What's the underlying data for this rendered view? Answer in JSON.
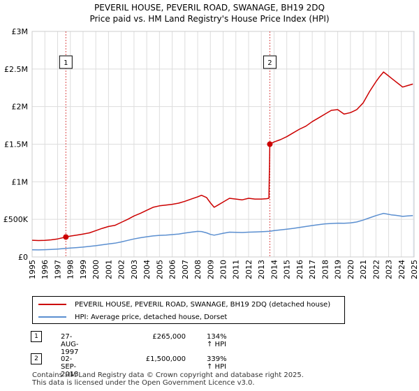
{
  "title_line1": "PEVERIL HOUSE, PEVERIL ROAD, SWANAGE, BH19 2DQ",
  "title_line2": "Price paid vs. HM Land Registry's House Price Index (HPI)",
  "colors": {
    "property": "#cc0000",
    "hpi": "#5b8fd0",
    "grid": "#dddddd",
    "shade": "#e8eef8",
    "vline": "#cc0000"
  },
  "chart_data": {
    "type": "line",
    "x_range": [
      1995,
      2025
    ],
    "ylim": [
      0,
      3000000
    ],
    "y_ticks": [
      {
        "value": 0,
        "label": "£0"
      },
      {
        "value": 500000,
        "label": "£500K"
      },
      {
        "value": 1000000,
        "label": "£1M"
      },
      {
        "value": 1500000,
        "label": "£1.5M"
      },
      {
        "value": 2000000,
        "label": "£2M"
      },
      {
        "value": 2500000,
        "label": "£2.5M"
      },
      {
        "value": 3000000,
        "label": "£3M"
      }
    ],
    "x_ticks": [
      "1995",
      "1996",
      "1997",
      "1998",
      "1999",
      "2000",
      "2001",
      "2002",
      "2003",
      "2004",
      "2005",
      "2006",
      "2007",
      "2008",
      "2009",
      "2010",
      "2011",
      "2012",
      "2013",
      "2014",
      "2015",
      "2016",
      "2017",
      "2018",
      "2019",
      "2020",
      "2021",
      "2022",
      "2023",
      "2024",
      "2025"
    ],
    "series": [
      {
        "name": "PEVERIL HOUSE, PEVERIL ROAD, SWANAGE, BH19 2DQ (detached house)",
        "color": "#cc0000",
        "points": [
          [
            1995.0,
            222000
          ],
          [
            1995.5,
            218000
          ],
          [
            1996.0,
            220000
          ],
          [
            1996.5,
            228000
          ],
          [
            1997.0,
            240000
          ],
          [
            1997.65,
            265000
          ],
          [
            1998.0,
            278000
          ],
          [
            1998.5,
            290000
          ],
          [
            1999.0,
            305000
          ],
          [
            1999.5,
            320000
          ],
          [
            2000.0,
            350000
          ],
          [
            2000.5,
            380000
          ],
          [
            2001.0,
            405000
          ],
          [
            2001.5,
            420000
          ],
          [
            2002.0,
            460000
          ],
          [
            2002.5,
            500000
          ],
          [
            2003.0,
            545000
          ],
          [
            2003.5,
            580000
          ],
          [
            2004.0,
            620000
          ],
          [
            2004.5,
            660000
          ],
          [
            2005.0,
            680000
          ],
          [
            2005.5,
            690000
          ],
          [
            2006.0,
            700000
          ],
          [
            2006.5,
            715000
          ],
          [
            2007.0,
            740000
          ],
          [
            2007.5,
            770000
          ],
          [
            2008.0,
            800000
          ],
          [
            2008.3,
            820000
          ],
          [
            2008.7,
            790000
          ],
          [
            2009.0,
            720000
          ],
          [
            2009.3,
            660000
          ],
          [
            2009.6,
            690000
          ],
          [
            2010.0,
            730000
          ],
          [
            2010.5,
            780000
          ],
          [
            2011.0,
            770000
          ],
          [
            2011.5,
            760000
          ],
          [
            2012.0,
            780000
          ],
          [
            2012.5,
            770000
          ],
          [
            2013.0,
            770000
          ],
          [
            2013.4,
            775000
          ],
          [
            2013.6,
            780000
          ],
          [
            2013.67,
            1500000
          ],
          [
            2014.0,
            1530000
          ],
          [
            2014.5,
            1560000
          ],
          [
            2015.0,
            1600000
          ],
          [
            2015.5,
            1650000
          ],
          [
            2016.0,
            1700000
          ],
          [
            2016.5,
            1740000
          ],
          [
            2017.0,
            1800000
          ],
          [
            2017.5,
            1850000
          ],
          [
            2018.0,
            1900000
          ],
          [
            2018.5,
            1950000
          ],
          [
            2019.0,
            1960000
          ],
          [
            2019.5,
            1900000
          ],
          [
            2020.0,
            1920000
          ],
          [
            2020.5,
            1960000
          ],
          [
            2021.0,
            2050000
          ],
          [
            2021.5,
            2200000
          ],
          [
            2022.0,
            2330000
          ],
          [
            2022.3,
            2400000
          ],
          [
            2022.6,
            2460000
          ],
          [
            2022.9,
            2420000
          ],
          [
            2023.2,
            2380000
          ],
          [
            2023.5,
            2340000
          ],
          [
            2023.8,
            2300000
          ],
          [
            2024.1,
            2260000
          ],
          [
            2024.5,
            2280000
          ],
          [
            2024.9,
            2300000
          ]
        ]
      },
      {
        "name": "HPI: Average price, detached house, Dorset",
        "color": "#5b8fd0",
        "points": [
          [
            1995.0,
            95000
          ],
          [
            1995.5,
            94000
          ],
          [
            1996.0,
            97000
          ],
          [
            1996.5,
            100000
          ],
          [
            1997.0,
            105000
          ],
          [
            1997.65,
            113000
          ],
          [
            1998.0,
            118000
          ],
          [
            1998.5,
            124000
          ],
          [
            1999.0,
            131000
          ],
          [
            1999.5,
            140000
          ],
          [
            2000.0,
            150000
          ],
          [
            2000.5,
            162000
          ],
          [
            2001.0,
            173000
          ],
          [
            2001.5,
            183000
          ],
          [
            2002.0,
            200000
          ],
          [
            2002.5,
            220000
          ],
          [
            2003.0,
            240000
          ],
          [
            2003.5,
            255000
          ],
          [
            2004.0,
            268000
          ],
          [
            2004.5,
            280000
          ],
          [
            2005.0,
            287000
          ],
          [
            2005.5,
            290000
          ],
          [
            2006.0,
            297000
          ],
          [
            2006.5,
            305000
          ],
          [
            2007.0,
            318000
          ],
          [
            2007.5,
            330000
          ],
          [
            2008.0,
            340000
          ],
          [
            2008.3,
            338000
          ],
          [
            2008.7,
            320000
          ],
          [
            2009.0,
            300000
          ],
          [
            2009.3,
            290000
          ],
          [
            2009.6,
            300000
          ],
          [
            2010.0,
            315000
          ],
          [
            2010.5,
            330000
          ],
          [
            2011.0,
            328000
          ],
          [
            2011.5,
            325000
          ],
          [
            2012.0,
            330000
          ],
          [
            2012.5,
            332000
          ],
          [
            2013.0,
            335000
          ],
          [
            2013.67,
            342000
          ],
          [
            2014.0,
            350000
          ],
          [
            2014.5,
            360000
          ],
          [
            2015.0,
            370000
          ],
          [
            2015.5,
            380000
          ],
          [
            2016.0,
            393000
          ],
          [
            2016.5,
            405000
          ],
          [
            2017.0,
            418000
          ],
          [
            2017.5,
            430000
          ],
          [
            2018.0,
            440000
          ],
          [
            2018.5,
            445000
          ],
          [
            2019.0,
            450000
          ],
          [
            2019.5,
            448000
          ],
          [
            2020.0,
            452000
          ],
          [
            2020.5,
            465000
          ],
          [
            2021.0,
            490000
          ],
          [
            2021.5,
            520000
          ],
          [
            2022.0,
            550000
          ],
          [
            2022.3,
            565000
          ],
          [
            2022.6,
            580000
          ],
          [
            2022.9,
            570000
          ],
          [
            2023.2,
            560000
          ],
          [
            2023.5,
            555000
          ],
          [
            2023.8,
            548000
          ],
          [
            2024.1,
            540000
          ],
          [
            2024.5,
            545000
          ],
          [
            2024.9,
            550000
          ]
        ]
      }
    ],
    "sales": [
      {
        "id": "1",
        "x": 1997.65,
        "value": 265000
      },
      {
        "id": "2",
        "x": 2013.67,
        "value": 1500000
      }
    ]
  },
  "legend": {
    "property_label": "PEVERIL HOUSE, PEVERIL ROAD, SWANAGE, BH19 2DQ (detached house)",
    "hpi_label": "HPI: Average price, detached house, Dorset"
  },
  "sales_table": [
    {
      "id": "1",
      "date": "27-AUG-1997",
      "price": "£265,000",
      "hpi": "134% ↑ HPI"
    },
    {
      "id": "2",
      "date": "02-SEP-2013",
      "price": "£1,500,000",
      "hpi": "339% ↑ HPI"
    }
  ],
  "footer_line1": "Contains HM Land Registry data © Crown copyright and database right 2025.",
  "footer_line2": "This data is licensed under the Open Government Licence v3.0."
}
